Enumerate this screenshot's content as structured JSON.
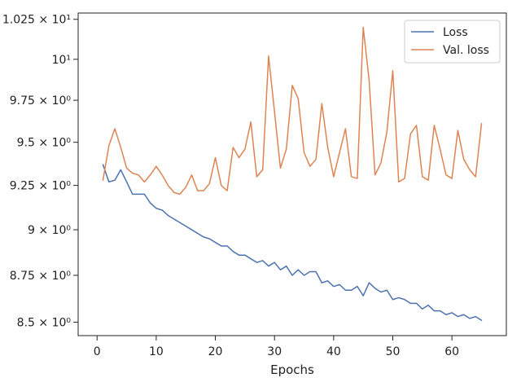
{
  "chart_data": {
    "type": "line",
    "title": "",
    "xlabel": "Epochs",
    "ylabel": "",
    "yscale": "log",
    "xlim": [
      -3.2,
      69.2
    ],
    "ylim": [
      8.43,
      10.29
    ],
    "xticks": [
      0,
      10,
      20,
      30,
      40,
      50,
      60
    ],
    "yticks": [
      {
        "value": 8.5,
        "label": "8.5 × 10⁰"
      },
      {
        "value": 8.75,
        "label": "8.75 × 10⁰"
      },
      {
        "value": 9.0,
        "label": "9 × 10⁰"
      },
      {
        "value": 9.25,
        "label": "9.25 × 10⁰"
      },
      {
        "value": 9.5,
        "label": "9.5 × 10⁰"
      },
      {
        "value": 9.75,
        "label": "9.75 × 10⁰"
      },
      {
        "value": 10.0,
        "label": "10¹"
      },
      {
        "value": 10.25,
        "label": "1.025 × 10¹"
      }
    ],
    "grid": false,
    "legend_position": "top-right",
    "x": [
      1,
      2,
      3,
      4,
      5,
      6,
      7,
      8,
      9,
      10,
      11,
      12,
      13,
      14,
      15,
      16,
      17,
      18,
      19,
      20,
      21,
      22,
      23,
      24,
      25,
      26,
      27,
      28,
      29,
      30,
      31,
      32,
      33,
      34,
      35,
      36,
      37,
      38,
      39,
      40,
      41,
      42,
      43,
      44,
      45,
      46,
      47,
      48,
      49,
      50,
      51,
      52,
      53,
      54,
      55,
      56,
      57,
      58,
      59,
      60,
      61,
      62,
      63,
      64,
      65
    ],
    "series": [
      {
        "name": "Loss",
        "color": "#4c72b0",
        "values": [
          9.37,
          9.27,
          9.28,
          9.34,
          9.27,
          9.2,
          9.2,
          9.2,
          9.15,
          9.12,
          9.11,
          9.08,
          9.06,
          9.04,
          9.02,
          9.0,
          8.98,
          8.96,
          8.95,
          8.93,
          8.91,
          8.91,
          8.88,
          8.86,
          8.86,
          8.84,
          8.82,
          8.83,
          8.8,
          8.82,
          8.78,
          8.8,
          8.75,
          8.78,
          8.75,
          8.77,
          8.77,
          8.71,
          8.72,
          8.69,
          8.7,
          8.67,
          8.67,
          8.69,
          8.64,
          8.71,
          8.68,
          8.66,
          8.67,
          8.62,
          8.63,
          8.62,
          8.6,
          8.6,
          8.57,
          8.59,
          8.56,
          8.56,
          8.54,
          8.55,
          8.53,
          8.54,
          8.52,
          8.53,
          8.51
        ]
      },
      {
        "name": "Val. loss",
        "color": "#dd8452",
        "values": [
          9.28,
          9.48,
          9.58,
          9.47,
          9.35,
          9.32,
          9.31,
          9.27,
          9.31,
          9.36,
          9.31,
          9.25,
          9.21,
          9.2,
          9.24,
          9.31,
          9.22,
          9.22,
          9.26,
          9.41,
          9.25,
          9.22,
          9.47,
          9.41,
          9.46,
          9.62,
          9.3,
          9.34,
          10.02,
          9.68,
          9.35,
          9.46,
          9.84,
          9.76,
          9.44,
          9.36,
          9.4,
          9.73,
          9.47,
          9.3,
          9.44,
          9.58,
          9.3,
          9.29,
          10.2,
          9.87,
          9.31,
          9.38,
          9.56,
          9.93,
          9.27,
          9.29,
          9.55,
          9.6,
          9.3,
          9.28,
          9.6,
          9.46,
          9.31,
          9.29,
          9.57,
          9.4,
          9.34,
          9.3,
          9.61
        ]
      }
    ]
  }
}
